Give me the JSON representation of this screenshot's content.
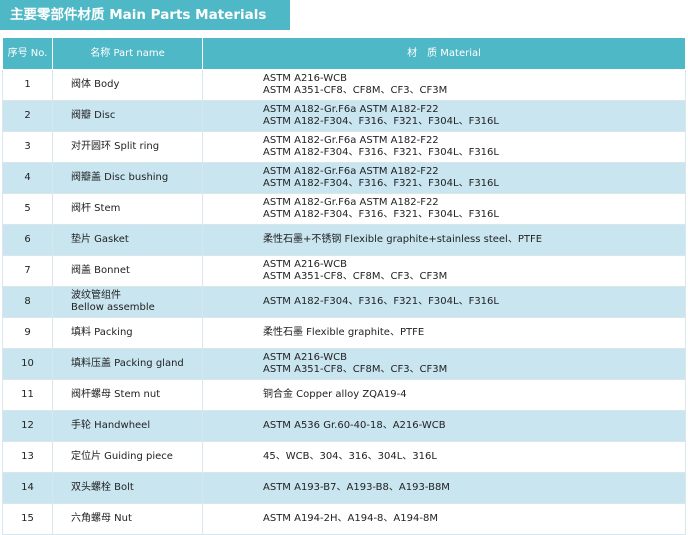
{
  "title": "主要零部件材质 Main Parts Materials",
  "header": {
    "no": "序号 No.",
    "name": "名称 Part name",
    "material": "材　质 Material"
  },
  "rows": [
    {
      "no": "1",
      "name": [
        "阀体 Body"
      ],
      "material": [
        "ASTM  A216-WCB",
        "ASTM  A351-CF8、CF8M、CF3、CF3M"
      ]
    },
    {
      "no": "2",
      "name": [
        "阀瓣 Disc"
      ],
      "material": [
        "ASTM  A182-Gr.F6a  ASTM  A182-F22",
        "ASTM  A182-F304、F316、F321、F304L、F316L"
      ]
    },
    {
      "no": "3",
      "name": [
        "对开圆环 Split ring"
      ],
      "material": [
        "ASTM  A182-Gr.F6a  ASTM  A182-F22",
        "ASTM  A182-F304、F316、F321、F304L、F316L"
      ]
    },
    {
      "no": "4",
      "name": [
        "阀瓣盖 Disc bushing"
      ],
      "material": [
        "ASTM  A182-Gr.F6a  ASTM  A182-F22",
        "ASTM  A182-F304、F316、F321、F304L、F316L"
      ]
    },
    {
      "no": "5",
      "name": [
        "阀杆 Stem"
      ],
      "material": [
        "ASTM  A182-Gr.F6a  ASTM  A182-F22",
        "ASTM  A182-F304、F316、F321、F304L、F316L"
      ]
    },
    {
      "no": "6",
      "name": [
        "垫片 Gasket"
      ],
      "material": [
        "柔性石墨+不锈钢 Flexible graphite+stainless steel、PTFE"
      ]
    },
    {
      "no": "7",
      "name": [
        "阀盖 Bonnet"
      ],
      "material": [
        "ASTM  A216-WCB",
        "ASTM  A351-CF8、CF8M、CF3、CF3M"
      ]
    },
    {
      "no": "8",
      "name": [
        "波纹管组件",
        "Bellow assemble"
      ],
      "material": [
        "ASTM  A182-F304、F316、F321、F304L、F316L"
      ]
    },
    {
      "no": "9",
      "name": [
        "填料 Packing"
      ],
      "material": [
        "柔性石墨 Flexible graphite、PTFE"
      ]
    },
    {
      "no": "10",
      "name": [
        "填料压盖 Packing gland"
      ],
      "material": [
        "ASTM  A216-WCB",
        "ASTM  A351-CF8、CF8M、CF3、CF3M"
      ]
    },
    {
      "no": "11",
      "name": [
        "阀杆螺母 Stem nut"
      ],
      "material": [
        "铜合金 Copper alloy ZQA19-4"
      ]
    },
    {
      "no": "12",
      "name": [
        "手轮 Handwheel"
      ],
      "material": [
        "ASTM  A536 Gr.60-40-18、A216-WCB"
      ]
    },
    {
      "no": "13",
      "name": [
        "定位片 Guiding piece"
      ],
      "material": [
        "45、WCB、304、316、304L、316L"
      ]
    },
    {
      "no": "14",
      "name": [
        "双头螺栓 Bolt"
      ],
      "material": [
        "ASTM  A193-B7、A193-B8、A193-B8M"
      ]
    },
    {
      "no": "15",
      "name": [
        "六角螺母 Nut"
      ],
      "material": [
        "ASTM  A194-2H、A194-8、A194-8M"
      ]
    }
  ],
  "colors": {
    "header_bg": "#4fb8c6",
    "alt_row_bg": "#c9e5f0"
  }
}
